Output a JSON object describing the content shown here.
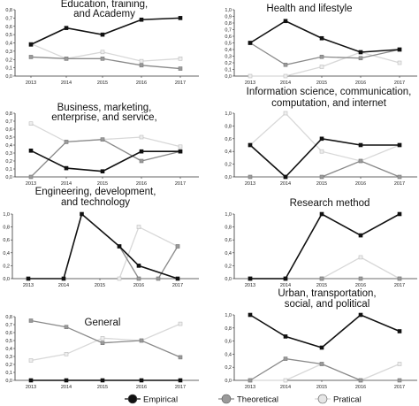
{
  "chart_data": [
    {
      "type": "line",
      "title": [
        "Education, training,",
        "and Academy"
      ],
      "x": [
        "2013",
        "2014",
        "2015",
        "2016",
        "2017"
      ],
      "ylim": [
        0,
        0.8
      ],
      "yticks": [
        "0,0",
        "0,1",
        "0,2",
        "0,3",
        "0,4",
        "0,5",
        "0,6",
        "0,7",
        "0,8"
      ],
      "series": [
        {
          "name": "Empirical",
          "values": [
            0.38,
            0.58,
            0.5,
            0.68,
            0.7
          ]
        },
        {
          "name": "Theoretical",
          "values": [
            0.23,
            0.21,
            0.21,
            0.13,
            0.09
          ]
        },
        {
          "name": "Pratical",
          "values": [
            0.39,
            0.21,
            0.29,
            0.18,
            0.21
          ]
        }
      ]
    },
    {
      "type": "line",
      "title": [
        "Health and lifestyle"
      ],
      "x": [
        "2013",
        "2014",
        "2015",
        "2016",
        "2017"
      ],
      "ylim": [
        0,
        1.0
      ],
      "yticks": [
        "0,0",
        "0,1",
        "0,2",
        "0,3",
        "0,4",
        "0,5",
        "0,6",
        "0,7",
        "0,8",
        "0,9",
        "1,0"
      ],
      "series": [
        {
          "name": "Empirical",
          "values": [
            0.5,
            0.83,
            0.57,
            0.36,
            0.4
          ]
        },
        {
          "name": "Theoretical",
          "values": [
            0.5,
            0.17,
            0.29,
            0.27,
            0.4
          ]
        },
        {
          "name": "Pratical",
          "values": [
            0.0,
            0.0,
            0.14,
            0.36,
            0.2
          ]
        }
      ]
    },
    {
      "type": "line",
      "title": [
        "Business, marketing,",
        "enterprise, and service,"
      ],
      "x": [
        "2013",
        "2014",
        "2015",
        "2016",
        "2017"
      ],
      "ylim": [
        0,
        0.8
      ],
      "yticks": [
        "0,0",
        "0,1",
        "0,2",
        "0,3",
        "0,4",
        "0,5",
        "0,6",
        "0,7",
        "0,8"
      ],
      "series": [
        {
          "name": "Empirical",
          "values": [
            0.33,
            0.11,
            0.07,
            0.32,
            0.32
          ]
        },
        {
          "name": "Theoretical",
          "values": [
            0.0,
            0.44,
            0.47,
            0.2,
            0.32
          ]
        },
        {
          "name": "Pratical",
          "values": [
            0.67,
            0.44,
            0.47,
            0.5,
            0.38
          ]
        }
      ]
    },
    {
      "type": "line",
      "title": [
        "Information science, communication,",
        "computation, and internet"
      ],
      "x": [
        "2013",
        "2014",
        "2015",
        "2016",
        "2017"
      ],
      "ylim": [
        0,
        1.0
      ],
      "yticks": [
        "0,0",
        "0,2",
        "0,4",
        "0,6",
        "0,8",
        "1,0"
      ],
      "series": [
        {
          "name": "Empirical",
          "values": [
            0.5,
            0.0,
            0.6,
            0.5,
            0.5
          ]
        },
        {
          "name": "Theoretical",
          "values": [
            0.0,
            0.0,
            0.0,
            0.25,
            0.0
          ]
        },
        {
          "name": "Pratical",
          "values": [
            0.5,
            1.0,
            0.4,
            0.25,
            0.5
          ]
        }
      ]
    },
    {
      "type": "line",
      "title": [
        "Engineering, development,",
        "and technology"
      ],
      "x": [
        "2013",
        "2014",
        "2015",
        "2016",
        "2017"
      ],
      "ylim": [
        0,
        1.0
      ],
      "yticks": [
        "0,0",
        "0,2",
        "0,4",
        "0,6",
        "0,8",
        "1,0"
      ],
      "series": [
        {
          "name": "Empirical",
          "x": [
            0,
            1,
            1.5,
            2.5,
            3,
            4
          ],
          "values": [
            0.0,
            0.0,
            1.0,
            0.5,
            0.2,
            0.0
          ]
        },
        {
          "name": "Theoretical",
          "x": [
            2.5,
            3,
            3.5,
            4
          ],
          "values": [
            0.5,
            0.0,
            0.0,
            0.5
          ]
        },
        {
          "name": "Pratical",
          "x": [
            2.5,
            3,
            4
          ],
          "values": [
            0.0,
            0.8,
            0.5
          ]
        }
      ]
    },
    {
      "type": "line",
      "title": [
        "Research method"
      ],
      "x": [
        "2013",
        "2014",
        "2015",
        "2016",
        "2017"
      ],
      "ylim": [
        0,
        1.0
      ],
      "yticks": [
        "0,0",
        "0,2",
        "0,4",
        "0,6",
        "0,8",
        "1,0"
      ],
      "series": [
        {
          "name": "Empirical",
          "values": [
            0.0,
            0.0,
            1.0,
            0.67,
            1.0
          ]
        },
        {
          "name": "Theoretical",
          "values": [
            0.0,
            0.0,
            0.0,
            0.0,
            0.0
          ]
        },
        {
          "name": "Pratical",
          "values": [
            0.0,
            0.0,
            0.0,
            0.33,
            0.0
          ]
        }
      ]
    },
    {
      "type": "line",
      "title": [
        "General"
      ],
      "x": [
        "2013",
        "2014",
        "2015",
        "2016",
        "2017"
      ],
      "ylim": [
        0,
        0.8
      ],
      "yticks": [
        "0,0",
        "0,1",
        "0,2",
        "0,3",
        "0,4",
        "0,5",
        "0,6",
        "0,7",
        "0,8"
      ],
      "series": [
        {
          "name": "Empirical",
          "values": [
            0.0,
            0.0,
            0.0,
            0.0,
            0.0
          ]
        },
        {
          "name": "Theoretical",
          "values": [
            0.75,
            0.67,
            0.47,
            0.5,
            0.29
          ]
        },
        {
          "name": "Pratical",
          "values": [
            0.25,
            0.33,
            0.53,
            0.5,
            0.71
          ]
        }
      ]
    },
    {
      "type": "line",
      "title": [
        "Urban, transportation,",
        "social, and political"
      ],
      "x": [
        "2013",
        "2014",
        "2015",
        "2016",
        "2017"
      ],
      "ylim": [
        0,
        1.0
      ],
      "yticks": [
        "0,0",
        "0,2",
        "0,4",
        "0,6",
        "0,8",
        "1,0"
      ],
      "series": [
        {
          "name": "Empirical",
          "values": [
            1.0,
            0.67,
            0.5,
            1.0,
            0.75
          ]
        },
        {
          "name": "Theoretical",
          "values": [
            0.0,
            0.33,
            0.25,
            0.0,
            0.0
          ]
        },
        {
          "name": "Pratical",
          "values": [
            0.0,
            0.0,
            0.25,
            0.0,
            0.25
          ]
        }
      ]
    }
  ],
  "legend": [
    {
      "label": "Empirical",
      "line_color": "#111111",
      "marker_color": "#111111"
    },
    {
      "label": "Theoretical",
      "line_color": "#8a8a8a",
      "marker_color": "#9a9a9a"
    },
    {
      "label": "Pratical",
      "line_color": "#d8d8d8",
      "marker_color": "#e6e6e6"
    }
  ]
}
